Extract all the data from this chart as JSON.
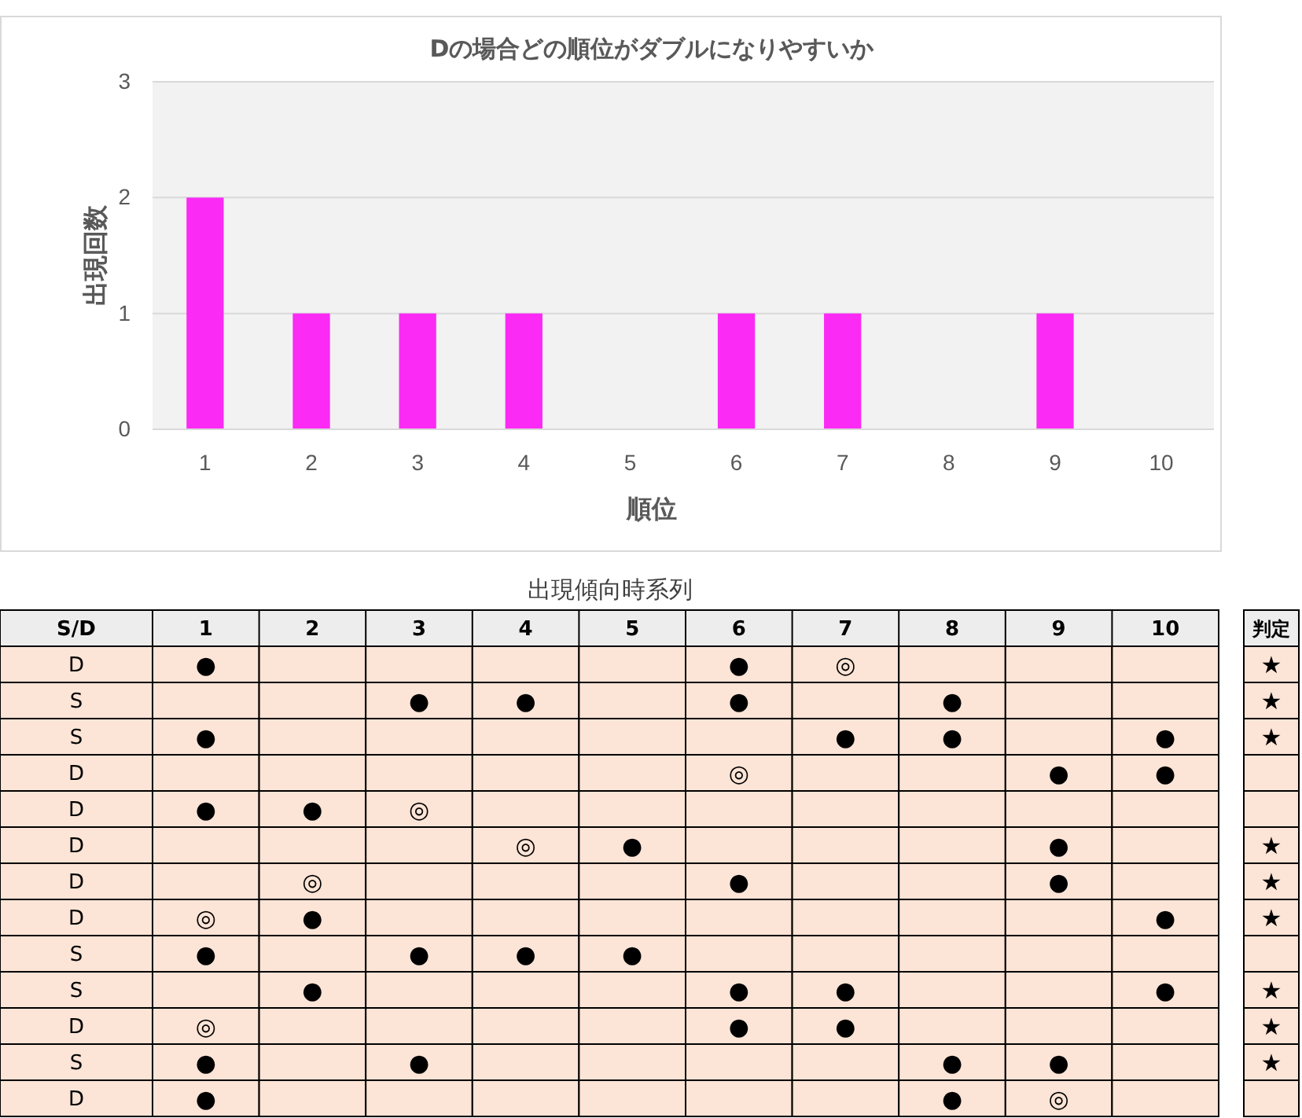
{
  "chart_data": [
    {
      "type": "bar",
      "title": "Dの場合どの順位がダブルになりやすいか",
      "xlabel": "順位",
      "ylabel": "出現回数",
      "categories": [
        "1",
        "2",
        "3",
        "4",
        "5",
        "6",
        "7",
        "8",
        "9",
        "10"
      ],
      "values": [
        2,
        1,
        1,
        1,
        0,
        1,
        1,
        0,
        1,
        0
      ],
      "color": "#fb2af5",
      "ylim": [
        0,
        3
      ],
      "yticks": [
        0,
        1,
        2,
        3
      ],
      "grid": "y"
    },
    {
      "type": "heatmap",
      "title": "出現傾向時系列",
      "ylabel": "S/D",
      "y2label": "判定",
      "categories": [
        "1",
        "2",
        "3",
        "4",
        "5",
        "6",
        "7",
        "8",
        "9",
        "10"
      ],
      "y_categories": [
        "D",
        "S",
        "S",
        "D",
        "D",
        "D",
        "D",
        "D",
        "S",
        "S",
        "D",
        "S",
        "D"
      ],
      "y2_categories": [
        "★",
        "★",
        "★",
        null,
        null,
        "★",
        "★",
        "★",
        null,
        "★",
        "★",
        "★",
        null
      ],
      "cells": [
        [
          null,
          null,
          null,
          null,
          null,
          null,
          null,
          null,
          null,
          null
        ],
        [
          null,
          null,
          null,
          null,
          null,
          null,
          null,
          null,
          null,
          null
        ],
        [
          null,
          null,
          null,
          null,
          null,
          null,
          null,
          null,
          null,
          null
        ],
        [
          null,
          null,
          null,
          null,
          null,
          null,
          null,
          null,
          null,
          null
        ],
        [
          null,
          null,
          null,
          null,
          null,
          null,
          null,
          null,
          null,
          null
        ],
        [
          null,
          null,
          null,
          null,
          null,
          null,
          null,
          null,
          null,
          null
        ],
        [
          null,
          null,
          null,
          null,
          null,
          null,
          null,
          null,
          null,
          null
        ],
        [
          null,
          null,
          null,
          null,
          null,
          null,
          null,
          null,
          null,
          null
        ],
        [
          null,
          null,
          null,
          null,
          null,
          null,
          null,
          null,
          null,
          null
        ],
        [
          null,
          null,
          null,
          null,
          null,
          null,
          null,
          null,
          null,
          null
        ],
        [
          null,
          null,
          null,
          null,
          null,
          null,
          null,
          null,
          null,
          null
        ],
        [
          null,
          null,
          null,
          null,
          null,
          null,
          null,
          null,
          null,
          null
        ],
        [
          null,
          null,
          null,
          null,
          null,
          null,
          null,
          null,
          null,
          null
        ]
      ],
      "cell_labels": [
        [
          "●",
          null,
          null,
          null,
          null,
          "●",
          "◎",
          null,
          null,
          null
        ],
        [
          null,
          null,
          "●",
          "●",
          null,
          "●",
          null,
          "●",
          null,
          null
        ],
        [
          "●",
          null,
          null,
          null,
          null,
          null,
          "●",
          "●",
          null,
          "●"
        ],
        [
          null,
          null,
          null,
          null,
          null,
          "◎",
          null,
          null,
          "●",
          "●"
        ],
        [
          "●",
          "●",
          "◎",
          null,
          null,
          null,
          null,
          null,
          null,
          null
        ],
        [
          null,
          null,
          null,
          "◎",
          "●",
          null,
          null,
          null,
          "●",
          null
        ],
        [
          null,
          "◎",
          null,
          null,
          null,
          "●",
          null,
          null,
          "●",
          null
        ],
        [
          "◎",
          "●",
          null,
          null,
          null,
          null,
          null,
          null,
          null,
          "●"
        ],
        [
          "●",
          null,
          "●",
          "●",
          "●",
          null,
          null,
          null,
          null,
          null
        ],
        [
          null,
          "●",
          null,
          null,
          null,
          "●",
          "●",
          null,
          null,
          "●"
        ],
        [
          "◎",
          null,
          null,
          null,
          null,
          "●",
          "●",
          null,
          null,
          null
        ],
        [
          "●",
          null,
          "●",
          null,
          null,
          null,
          null,
          "●",
          "●",
          null
        ],
        [
          "●",
          null,
          null,
          null,
          null,
          null,
          null,
          "●",
          "◎",
          null
        ]
      ]
    }
  ]
}
